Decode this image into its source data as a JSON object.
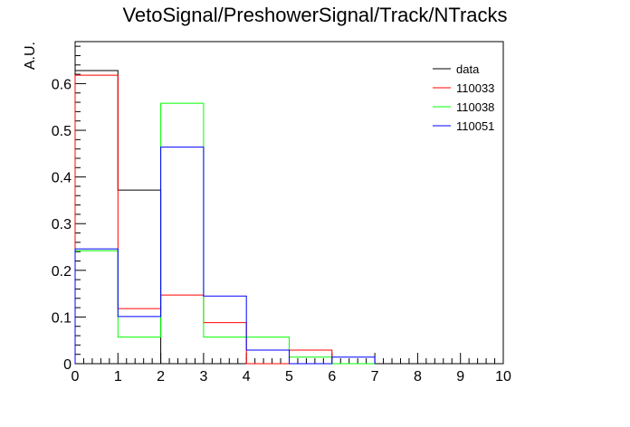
{
  "chart_data": {
    "type": "line",
    "title": "VetoSignal/PreshowerSignal/Track/NTracks",
    "xlabel": "",
    "ylabel": "A.U.",
    "xlim": [
      0,
      10
    ],
    "ylim": [
      0,
      0.69
    ],
    "x_ticks": [
      0,
      1,
      2,
      3,
      4,
      5,
      6,
      7,
      8,
      9,
      10
    ],
    "x_tick_labels": [
      "0",
      "1",
      "2",
      "3",
      "4",
      "5",
      "6",
      "7",
      "8",
      "9",
      "10"
    ],
    "y_ticks": [
      0,
      0.1,
      0.2,
      0.3,
      0.4,
      0.5,
      0.6
    ],
    "y_tick_labels": [
      "0",
      "0.1",
      "0.2",
      "0.3",
      "0.4",
      "0.5",
      "0.6"
    ],
    "bin_edges": [
      0,
      1,
      2,
      3,
      4,
      5,
      6,
      7,
      8,
      9,
      10
    ],
    "grid": false,
    "legend_position": "top-right",
    "series": [
      {
        "name": "data",
        "color": "#000000",
        "values": [
          0.628,
          0.372
        ]
      },
      {
        "name": "110033",
        "color": "#ff0000",
        "values": [
          0.618,
          0.118,
          0.147,
          0.088,
          0.0,
          0.029
        ]
      },
      {
        "name": "110038",
        "color": "#00ff00",
        "values": [
          0.242,
          0.057,
          0.558,
          0.057,
          0.057,
          0.014,
          0.0
        ]
      },
      {
        "name": "110051",
        "color": "#0000ff",
        "values": [
          0.246,
          0.101,
          0.464,
          0.145,
          0.029,
          0.0,
          0.014
        ]
      }
    ]
  }
}
